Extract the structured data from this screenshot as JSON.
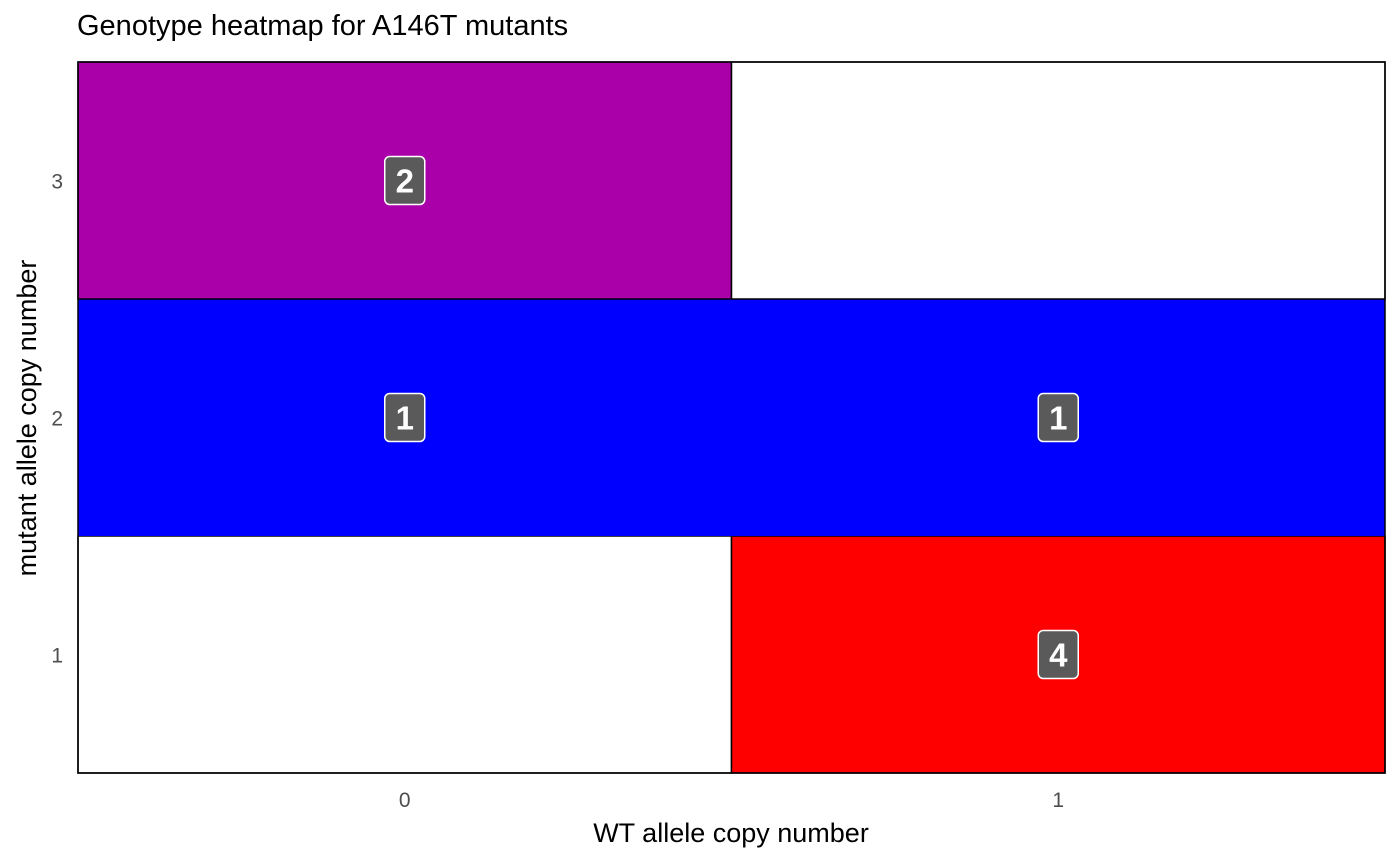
{
  "chart_data": {
    "type": "heatmap",
    "title": "Genotype heatmap for A146T mutants",
    "xlabel": "WT allele copy number",
    "ylabel": "mutant allele copy number",
    "x_categories": [
      "0",
      "1"
    ],
    "y_categories": [
      "1",
      "2",
      "3"
    ],
    "cells": [
      {
        "x": "0",
        "y": "3",
        "count": 2,
        "color": "#AA00AA"
      },
      {
        "x": "0",
        "y": "2",
        "count": 1,
        "color": "#0000FF"
      },
      {
        "x": "1",
        "y": "2",
        "count": 1,
        "color": "#0000FF"
      },
      {
        "x": "1",
        "y": "1",
        "count": 4,
        "color": "#FF0000"
      }
    ],
    "empty_color": "#FFFFFF",
    "label_box_color": "#5A5A5A",
    "grid": false,
    "legend": "none"
  }
}
